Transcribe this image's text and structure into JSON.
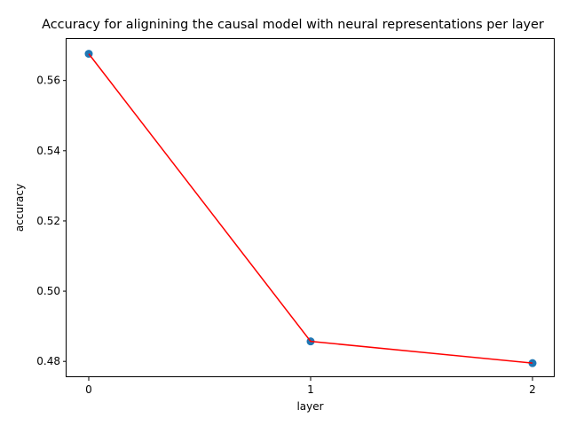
{
  "chart_data": {
    "type": "line",
    "title": "Accuracy for alignining the causal model with neural representations per layer",
    "xlabel": "layer",
    "ylabel": "accuracy",
    "x": [
      0,
      1,
      2
    ],
    "xticks": [
      "0",
      "1",
      "2"
    ],
    "xlim": [
      -0.1,
      2.1
    ],
    "yticks": [
      "0.48",
      "0.50",
      "0.52",
      "0.54",
      "0.56"
    ],
    "ytick_values": [
      0.48,
      0.5,
      0.52,
      0.54,
      0.56
    ],
    "ylim": [
      0.4755,
      0.5718
    ],
    "series": [
      {
        "values": [
          0.5676,
          0.4857,
          0.4795
        ],
        "line_color": "#ff0000",
        "marker_color": "#1f77b4"
      }
    ],
    "grid": false,
    "legend": "none"
  }
}
